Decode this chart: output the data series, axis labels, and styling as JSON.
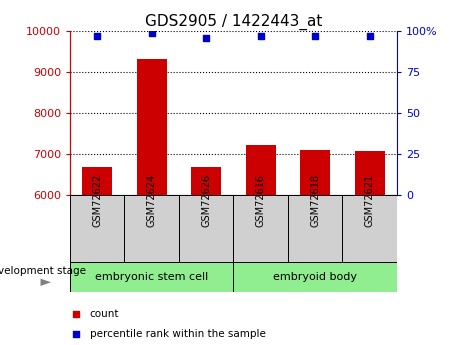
{
  "title": "GDS2905 / 1422443_at",
  "categories": [
    "GSM72622",
    "GSM72624",
    "GSM72626",
    "GSM72616",
    "GSM72618",
    "GSM72621"
  ],
  "bar_values": [
    6680,
    9320,
    6680,
    7230,
    7100,
    7060
  ],
  "percentile_values": [
    97,
    99,
    96,
    97,
    97,
    97
  ],
  "ylim_left": [
    6000,
    10000
  ],
  "ylim_right": [
    0,
    100
  ],
  "yticks_left": [
    6000,
    7000,
    8000,
    9000,
    10000
  ],
  "yticks_right": [
    0,
    25,
    50,
    75,
    100
  ],
  "bar_color": "#cc0000",
  "dot_color": "#0000cc",
  "bar_width": 0.55,
  "grid_color": "#000000",
  "groups": [
    {
      "label": "embryonic stem cell",
      "indices": [
        0,
        1,
        2
      ],
      "color": "#90ee90"
    },
    {
      "label": "embryoid body",
      "indices": [
        3,
        4,
        5
      ],
      "color": "#90ee90"
    }
  ],
  "stage_label": "development stage",
  "legend_items": [
    {
      "label": "count",
      "color": "#cc0000"
    },
    {
      "label": "percentile rank within the sample",
      "color": "#0000cc"
    }
  ],
  "left_axis_color": "#cc0000",
  "right_axis_color": "#0000cc",
  "sample_box_color": "#d0d0d0",
  "title_fontsize": 11
}
